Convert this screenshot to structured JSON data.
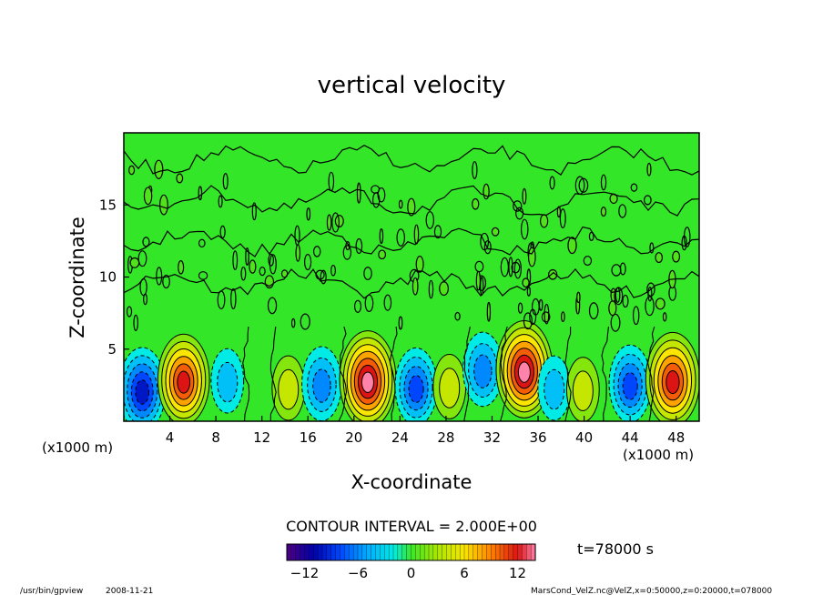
{
  "chart_data": {
    "type": "heatmap",
    "title": "vertical velocity",
    "xlabel": "X-coordinate",
    "ylabel": "Z-coordinate",
    "x_unit_label": "(x1000 m)",
    "z_unit_label": "(x1000 m)",
    "xlim": [
      0,
      50
    ],
    "ylim": [
      0,
      20
    ],
    "x_ticks": [
      "4",
      "8",
      "12",
      "16",
      "20",
      "24",
      "28",
      "32",
      "36",
      "40",
      "44",
      "48"
    ],
    "y_ticks": [
      "5",
      "10",
      "15"
    ],
    "contour_interval_text": "CONTOUR INTERVAL = 2.000E+00",
    "time_label": "t=78000 s",
    "colorbar": {
      "range": [
        -14,
        14
      ],
      "ticks": [
        "−12",
        "−6",
        "0",
        "6",
        "12"
      ],
      "tick_values": [
        -12,
        -6,
        0,
        6,
        12
      ]
    },
    "cells": [
      {
        "x": 1.6,
        "z": 2.2,
        "value": -9
      },
      {
        "x": 5.2,
        "z": 2.9,
        "value": 11
      },
      {
        "x": 9.0,
        "z": 2.8,
        "value": -3
      },
      {
        "x": 14.3,
        "z": 2.3,
        "value": 3
      },
      {
        "x": 17.2,
        "z": 2.6,
        "value": -6
      },
      {
        "x": 21.2,
        "z": 2.9,
        "value": 13
      },
      {
        "x": 25.4,
        "z": 2.4,
        "value": -7
      },
      {
        "x": 28.3,
        "z": 2.4,
        "value": 3
      },
      {
        "x": 31.2,
        "z": 3.6,
        "value": -6
      },
      {
        "x": 34.8,
        "z": 3.6,
        "value": 13
      },
      {
        "x": 37.4,
        "z": 2.3,
        "value": -3
      },
      {
        "x": 39.9,
        "z": 2.2,
        "value": 3
      },
      {
        "x": 44.0,
        "z": 2.6,
        "value": -7
      },
      {
        "x": 47.7,
        "z": 2.9,
        "value": 12
      }
    ]
  },
  "footer": {
    "left_path": "/usr/bin/gpview",
    "left_date": "2008-11-21",
    "right_info": "MarsCond_VelZ.nc@VelZ,x=0:50000,z=0:20000,t=078000"
  }
}
